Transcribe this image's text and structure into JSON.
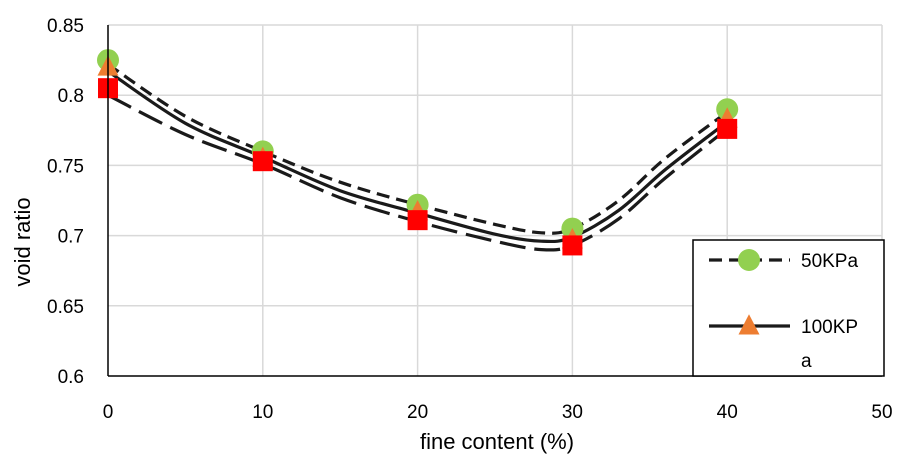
{
  "chart_data": {
    "type": "scatter",
    "xlabel": "fine content (%)",
    "ylabel": "void ratio",
    "xlim": [
      0,
      50
    ],
    "ylim": [
      0.6,
      0.85
    ],
    "x_ticks": [
      "0",
      "10",
      "20",
      "30",
      "40",
      "50"
    ],
    "y_ticks": [
      "0.6",
      "0.65",
      "0.7",
      "0.75",
      "0.8",
      "0.85"
    ],
    "grid": true,
    "legend_position": "bottom-right",
    "series": [
      {
        "name": "50KPa",
        "marker": "circle",
        "marker_color": "#92D050",
        "line_style": "dashed",
        "x": [
          0,
          10,
          20,
          30,
          40
        ],
        "y": [
          0.825,
          0.76,
          0.722,
          0.705,
          0.79
        ],
        "trend_x": [
          0,
          5,
          10,
          15,
          20,
          25,
          28,
          30,
          33,
          36,
          40
        ],
        "trend_y": [
          0.822,
          0.785,
          0.76,
          0.738,
          0.722,
          0.708,
          0.702,
          0.705,
          0.725,
          0.755,
          0.788
        ]
      },
      {
        "name": "100KPa",
        "legend_label_lines": [
          "100KP",
          "a"
        ],
        "marker": "triangle",
        "marker_color": "#ED7D31",
        "line_style": "solid",
        "x": [
          0,
          10,
          20,
          30,
          40
        ],
        "y": [
          0.82,
          0.755,
          0.717,
          0.697,
          0.783
        ],
        "trend_x": [
          0,
          5,
          10,
          15,
          20,
          25,
          28,
          30,
          33,
          36,
          40
        ],
        "trend_y": [
          0.817,
          0.78,
          0.756,
          0.732,
          0.716,
          0.701,
          0.696,
          0.699,
          0.718,
          0.747,
          0.781
        ]
      },
      {
        "name": "",
        "marker": "square",
        "marker_color": "#FF0000",
        "line_style": "longdash",
        "x": [
          0,
          10,
          20,
          30,
          40
        ],
        "y": [
          0.805,
          0.753,
          0.711,
          0.693,
          0.776
        ],
        "trend_x": [
          0,
          5,
          10,
          15,
          20,
          25,
          28,
          30,
          33,
          36,
          40
        ],
        "trend_y": [
          0.8,
          0.772,
          0.751,
          0.727,
          0.71,
          0.696,
          0.69,
          0.693,
          0.712,
          0.741,
          0.776
        ]
      }
    ]
  }
}
